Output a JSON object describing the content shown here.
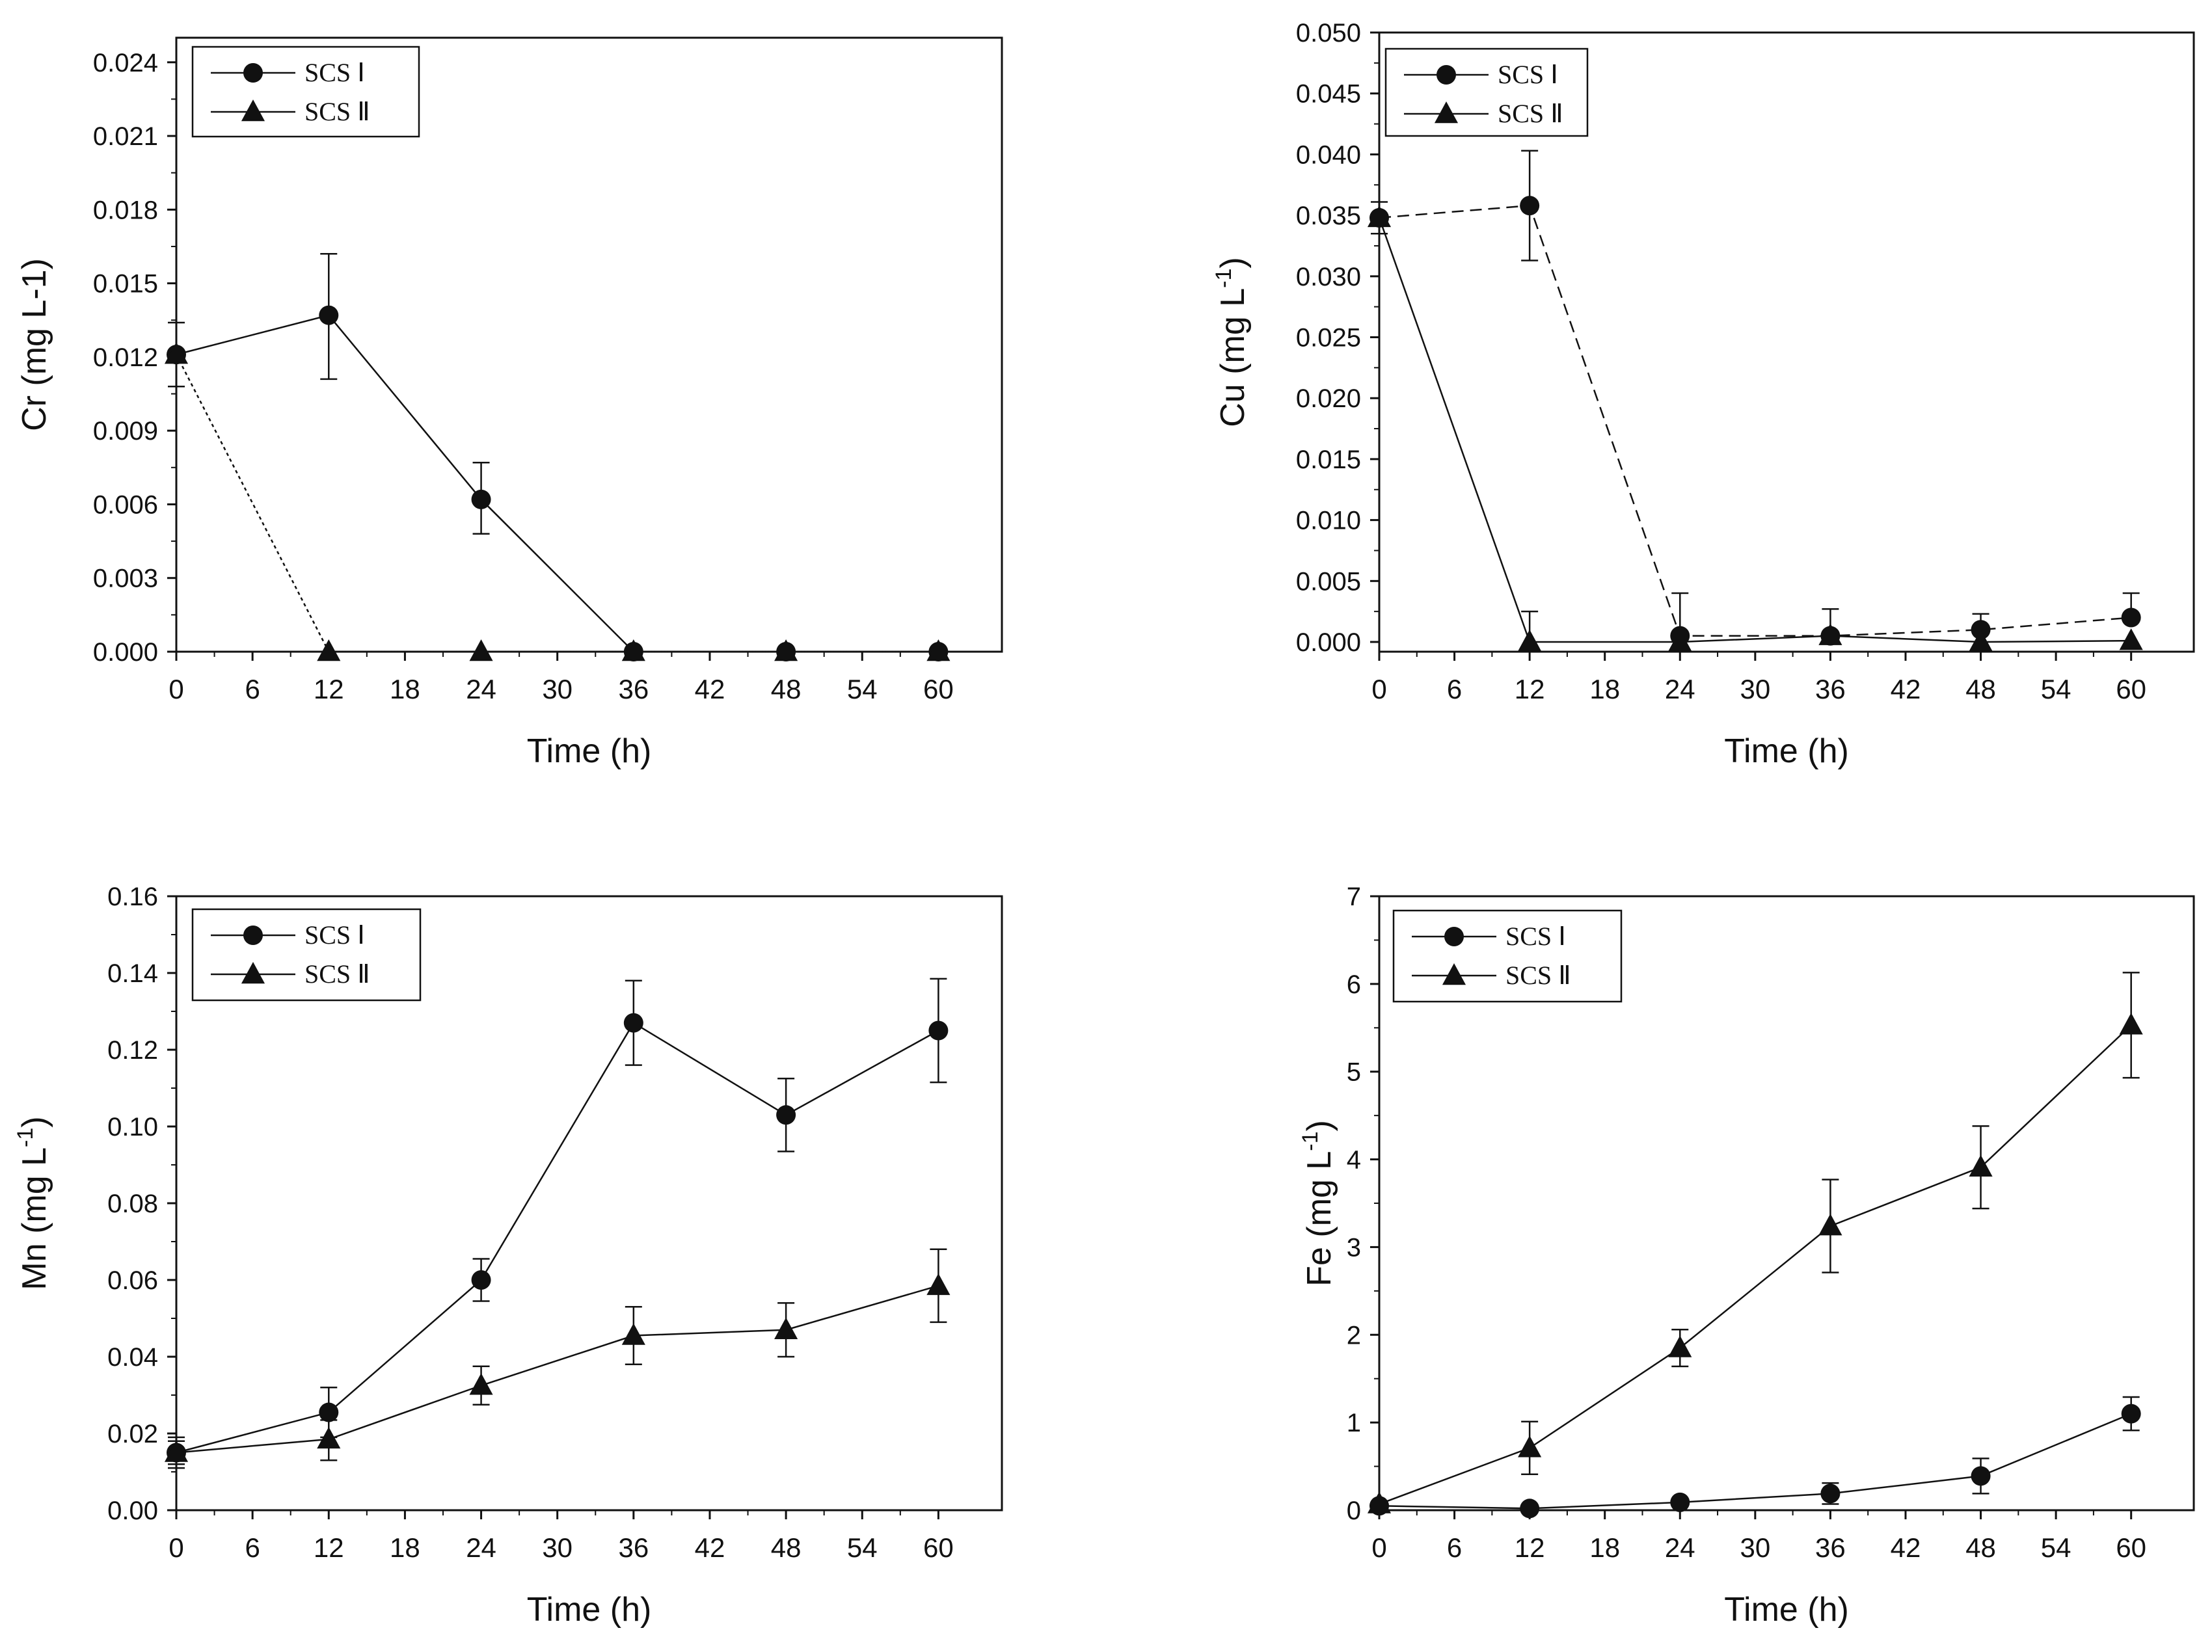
{
  "colors": {
    "axis": "#111111",
    "series": "#111111",
    "background": "#ffffff"
  },
  "chart_data": [
    {
      "type": "line",
      "xlabel": "Time (h)",
      "ylabel_main": "Cr (mg L-1)",
      "ylabel_sup": "",
      "ylabel_end": "",
      "xlim": [
        0,
        65
      ],
      "ylim": [
        0,
        0.025
      ],
      "xticks": [
        0,
        6,
        12,
        18,
        24,
        30,
        36,
        42,
        48,
        54,
        60
      ],
      "xtick_labels": [
        "0",
        "6",
        "12",
        "18",
        "24",
        "30",
        "36",
        "42",
        "48",
        "54",
        "60"
      ],
      "yticks": [
        0,
        0.003,
        0.006,
        0.009,
        0.012,
        0.015,
        0.018,
        0.021,
        0.024
      ],
      "ytick_labels": [
        "0.000",
        "0.003",
        "0.006",
        "0.009",
        "0.012",
        "0.015",
        "0.018",
        "0.021",
        "0.024"
      ],
      "legend": {
        "placement": "top-left",
        "entries": [
          "SCS Ⅰ",
          "SCS Ⅱ"
        ]
      },
      "series": [
        {
          "name": "SCS Ⅰ",
          "marker": "circle",
          "line_style": "solid",
          "x": [
            0,
            12,
            24,
            36,
            48,
            60
          ],
          "y": [
            0.0121,
            0.0137,
            0.0062,
            0.0,
            0.0,
            0.0
          ],
          "err_up": [
            0.0013,
            0.0025,
            0.0015,
            0,
            0,
            0
          ],
          "err_down": [
            0.0013,
            0.0026,
            0.0014,
            0,
            0,
            0
          ]
        },
        {
          "name": "SCS Ⅱ",
          "marker": "triangle",
          "line_style": "dotted",
          "x": [
            0,
            12,
            24,
            36,
            48,
            60
          ],
          "y": [
            0.0121,
            0.0,
            0.0,
            0.0,
            0.0,
            0.0
          ],
          "err_up": [
            0,
            0,
            0,
            0,
            0,
            0
          ],
          "err_down": [
            0,
            0,
            0,
            0,
            0,
            0
          ]
        }
      ]
    },
    {
      "type": "line",
      "xlabel": "Time (h)",
      "ylabel_main": "Cu (mg L",
      "ylabel_sup": "-1",
      "ylabel_end": ")",
      "xlim": [
        0,
        65
      ],
      "ylim": [
        -0.0008,
        0.05
      ],
      "xticks": [
        0,
        6,
        12,
        18,
        24,
        30,
        36,
        42,
        48,
        54,
        60
      ],
      "xtick_labels": [
        "0",
        "6",
        "12",
        "18",
        "24",
        "30",
        "36",
        "42",
        "48",
        "54",
        "60"
      ],
      "yticks": [
        0,
        0.005,
        0.01,
        0.015,
        0.02,
        0.025,
        0.03,
        0.035,
        0.04,
        0.045,
        0.05
      ],
      "ytick_labels": [
        "0.000",
        "0.005",
        "0.010",
        "0.015",
        "0.020",
        "0.025",
        "0.030",
        "0.035",
        "0.040",
        "0.045",
        "0.050"
      ],
      "legend": {
        "placement": "top-left",
        "entries": [
          "SCS Ⅰ",
          "SCS Ⅱ"
        ]
      },
      "series": [
        {
          "name": "SCS Ⅰ",
          "marker": "circle",
          "line_style": "dashed",
          "x": [
            0,
            12,
            24,
            36,
            48,
            60
          ],
          "y": [
            0.0348,
            0.0358,
            0.0005,
            0.0005,
            0.001,
            0.002
          ],
          "err_up": [
            0.0013,
            0.0045,
            0.0035,
            0.0022,
            0.0013,
            0.002
          ],
          "err_down": [
            0.0013,
            0.0045,
            0,
            0,
            0,
            0
          ]
        },
        {
          "name": "SCS Ⅱ",
          "marker": "triangle",
          "line_style": "solid",
          "x": [
            0,
            12,
            24,
            36,
            48,
            60
          ],
          "y": [
            0.0348,
            0.0,
            0.0,
            0.0005,
            0.0,
            0.0001
          ],
          "err_up": [
            0,
            0.0025,
            0,
            0,
            0,
            0
          ],
          "err_down": [
            0,
            0,
            0,
            0,
            0,
            0
          ]
        }
      ]
    },
    {
      "type": "line",
      "xlabel": "Time (h)",
      "ylabel_main": "Mn (mg L",
      "ylabel_sup": "-1",
      "ylabel_end": ")",
      "xlim": [
        0,
        65
      ],
      "ylim": [
        0,
        0.16
      ],
      "xticks": [
        0,
        6,
        12,
        18,
        24,
        30,
        36,
        42,
        48,
        54,
        60
      ],
      "xtick_labels": [
        "0",
        "6",
        "12",
        "18",
        "24",
        "30",
        "36",
        "42",
        "48",
        "54",
        "60"
      ],
      "yticks": [
        0,
        0.02,
        0.04,
        0.06,
        0.08,
        0.1,
        0.12,
        0.14,
        0.16
      ],
      "ytick_labels": [
        "0.00",
        "0.02",
        "0.04",
        "0.06",
        "0.08",
        "0.10",
        "0.12",
        "0.14",
        "0.16"
      ],
      "legend": {
        "placement": "top-left",
        "entries": [
          "SCS Ⅰ",
          "SCS Ⅱ"
        ]
      },
      "series": [
        {
          "name": "SCS Ⅰ",
          "marker": "circle",
          "line_style": "solid",
          "x": [
            0,
            12,
            24,
            36,
            48,
            60
          ],
          "y": [
            0.015,
            0.0255,
            0.06,
            0.127,
            0.103,
            0.125
          ],
          "err_up": [
            0.004,
            0.0065,
            0.0055,
            0.011,
            0.0095,
            0.0135
          ],
          "err_down": [
            0.004,
            0.0065,
            0.0055,
            0.011,
            0.0095,
            0.0135
          ]
        },
        {
          "name": "SCS Ⅱ",
          "marker": "triangle",
          "line_style": "solid",
          "x": [
            0,
            12,
            24,
            36,
            48,
            60
          ],
          "y": [
            0.015,
            0.0185,
            0.0325,
            0.0455,
            0.047,
            0.0585
          ],
          "err_up": [
            0.003,
            0.005,
            0.005,
            0.0075,
            0.007,
            0.0095
          ],
          "err_down": [
            0.003,
            0.0055,
            0.005,
            0.0075,
            0.007,
            0.0095
          ]
        }
      ]
    },
    {
      "type": "line",
      "xlabel": "Time (h)",
      "ylabel_main": "Fe (mg L",
      "ylabel_sup": "-1",
      "ylabel_end": ")",
      "xlim": [
        0,
        65
      ],
      "ylim": [
        0,
        7
      ],
      "xticks": [
        0,
        6,
        12,
        18,
        24,
        30,
        36,
        42,
        48,
        54,
        60
      ],
      "xtick_labels": [
        "0",
        "6",
        "12",
        "18",
        "24",
        "30",
        "36",
        "42",
        "48",
        "54",
        "60"
      ],
      "yticks": [
        0,
        1,
        2,
        3,
        4,
        5,
        6,
        7
      ],
      "ytick_labels": [
        "0",
        "1",
        "2",
        "3",
        "4",
        "5",
        "6",
        "7"
      ],
      "legend": {
        "placement": "top-left",
        "entries": [
          "SCS Ⅰ",
          "SCS Ⅱ"
        ]
      },
      "series": [
        {
          "name": "SCS Ⅰ",
          "marker": "circle",
          "line_style": "solid",
          "x": [
            0,
            12,
            24,
            36,
            48,
            60
          ],
          "y": [
            0.05,
            0.02,
            0.09,
            0.19,
            0.39,
            1.1
          ],
          "err_up": [
            0,
            0,
            0.04,
            0.12,
            0.2,
            0.19
          ],
          "err_down": [
            0,
            0,
            0.04,
            0.12,
            0.2,
            0.19
          ]
        },
        {
          "name": "SCS Ⅱ",
          "marker": "triangle",
          "line_style": "solid",
          "x": [
            0,
            12,
            24,
            36,
            48,
            60
          ],
          "y": [
            0.07,
            0.71,
            1.85,
            3.24,
            3.91,
            5.53
          ],
          "err_up": [
            0,
            0.3,
            0.21,
            0.53,
            0.47,
            0.6
          ],
          "err_down": [
            0,
            0.3,
            0.21,
            0.53,
            0.47,
            0.6
          ]
        }
      ]
    }
  ]
}
